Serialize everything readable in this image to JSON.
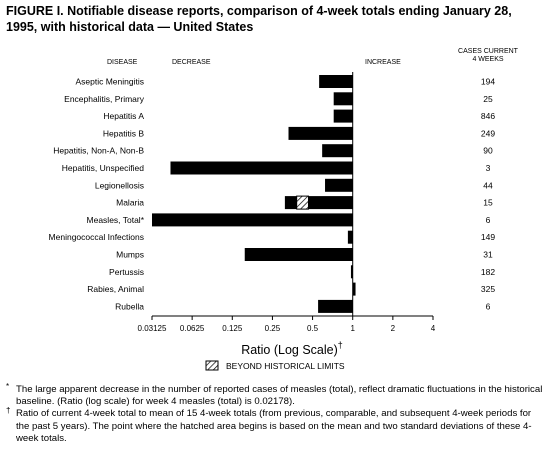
{
  "figure": {
    "title": "FIGURE I. Notifiable disease reports, comparison of 4-week totals ending January 28, 1995, with historical data — United States"
  },
  "legend": {
    "label": "BEYOND HISTORICAL LIMITS"
  },
  "footnotes": [
    {
      "mark": "*",
      "text": "The large apparent decrease in the number of reported cases of measles (total), reflect dramatic fluctuations in the historical baseline. (Ratio (log scale) for week 4 measles (total) is 0.02178)."
    },
    {
      "mark": "†",
      "text": "Ratio of current 4-week total to mean of 15 4-week totals (from previous, comparable, and subsequent 4-week periods for the past 5 years). The point where the hatched area begins is based on the mean and two standard deviations of these 4-week totals."
    }
  ],
  "chart_data": {
    "type": "bar",
    "orientation": "horizontal",
    "x_scale": "log2",
    "xlabel": "Ratio (Log Scale)",
    "xlabel_mark": "†",
    "xlim": [
      0.03125,
      4
    ],
    "x_ticks": [
      0.03125,
      0.0625,
      0.125,
      0.25,
      0.5,
      1,
      2,
      4
    ],
    "x_tick_labels": [
      "0.03125",
      "0.0625",
      "0.125",
      "0.25",
      "0.5",
      "1",
      "2",
      "4"
    ],
    "column_headers": {
      "disease": "DISEASE",
      "decrease": "DECREASE",
      "increase": "INCREASE",
      "cases": "CASES CURRENT 4 WEEKS"
    },
    "categories": [
      "Aseptic Meningitis",
      "Encephalitis, Primary",
      "Hepatitis A",
      "Hepatitis B",
      "Hepatitis, Non-A, Non-B",
      "Hepatitis, Unspecified",
      "Legionellosis",
      "Malaria",
      "Measles, Total*",
      "Meningococcal Infections",
      "Mumps",
      "Pertussis",
      "Rabies, Animal",
      "Rubella"
    ],
    "values": [
      0.56,
      0.72,
      0.72,
      0.33,
      0.59,
      0.043,
      0.62,
      0.38,
      0.03125,
      0.92,
      0.155,
      0.97,
      1.05,
      0.55
    ],
    "beyond_limit_start": [
      null,
      null,
      null,
      null,
      null,
      null,
      null,
      0.31,
      null,
      null,
      null,
      null,
      null,
      null
    ],
    "cases": [
      194,
      25,
      846,
      249,
      90,
      3,
      44,
      15,
      6,
      149,
      31,
      182,
      325,
      6
    ],
    "colors": {
      "bar": "#000000",
      "background": "#ffffff"
    }
  }
}
